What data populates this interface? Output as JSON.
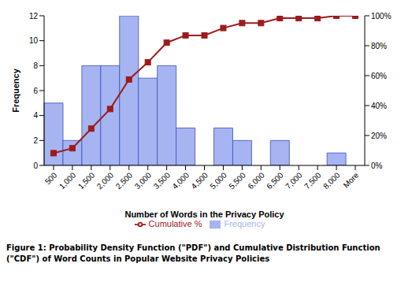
{
  "chart_data": {
    "type": "bar",
    "caption": "Figure 1: Probability Density Function (\"PDF\") and Cumulative Distribution Function (\"CDF\") of Word Counts in Popular Website Privacy Policies",
    "x_label": "Number of Words in the Privacy Policy",
    "y_label": "Frequency",
    "categories": [
      "500",
      "1,000",
      "1,500",
      "2,000",
      "2,500",
      "3,000",
      "3,500",
      "4,000",
      "4,500",
      "5,000",
      "5,500",
      "6,000",
      "6,500",
      "7,000",
      "7,500",
      "8,000",
      "More"
    ],
    "series": [
      {
        "name": "Frequency",
        "type": "bar",
        "color": "#a6b4f2",
        "values": [
          5,
          2,
          8,
          8,
          12,
          7,
          8,
          3,
          0,
          3,
          2,
          0,
          2,
          0,
          0,
          1,
          0
        ]
      },
      {
        "name": "Cumulative %",
        "type": "line",
        "axis": "y2",
        "color": "#9e1b1b",
        "marker": "square",
        "values": [
          8.2,
          11.5,
          24.6,
          37.7,
          57.4,
          68.9,
          82.0,
          86.9,
          86.9,
          91.8,
          95.1,
          95.1,
          98.4,
          98.4,
          98.4,
          100,
          100
        ]
      }
    ],
    "ylim": [
      0,
      12
    ],
    "yticks": [
      0,
      2,
      4,
      6,
      8,
      10,
      12
    ],
    "y2lim": [
      0,
      100
    ],
    "y2ticks": [
      {
        "value": 0,
        "label": "0%"
      },
      {
        "value": 20,
        "label": "20%"
      },
      {
        "value": 40,
        "label": "40%"
      },
      {
        "value": 60,
        "label": "60%"
      },
      {
        "value": 80,
        "label": "80%"
      },
      {
        "value": 100,
        "label": "100%"
      }
    ],
    "legend": "bottom",
    "grid": false
  }
}
